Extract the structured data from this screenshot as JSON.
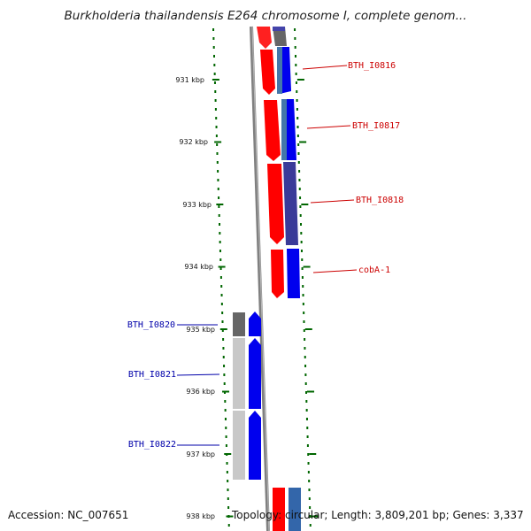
{
  "title": "Burkholderia thailandensis E264 chromosome I, complete genom...",
  "footer": {
    "accession": "Accession: NC_007651",
    "stats": "Topology: circular; Length: 3,809,201 bp; Genes: 3,337"
  },
  "colors": {
    "forward_red": "#ff0000",
    "forward_blue": "#0000ff",
    "gene_label_red": "#cc0000",
    "gene_label_blue": "#0000aa",
    "tick_green": "#006600",
    "backbone_gray": "#808080"
  },
  "scale": {
    "unit": "kbp",
    "ticks": [
      {
        "label": "931 kbp"
      },
      {
        "label": "932 kbp"
      },
      {
        "label": "933 kbp"
      },
      {
        "label": "934 kbp"
      },
      {
        "label": "935 kbp"
      },
      {
        "label": "936 kbp"
      },
      {
        "label": "937 kbp"
      },
      {
        "label": "938 kbp"
      }
    ]
  },
  "genes_right": [
    {
      "name": "BTH_I0816"
    },
    {
      "name": "BTH_I0817"
    },
    {
      "name": "BTH_I0818"
    },
    {
      "name": "cobA-1"
    }
  ],
  "genes_left": [
    {
      "name": "BTH_I0820"
    },
    {
      "name": "BTH_I0821"
    },
    {
      "name": "BTH_I0822"
    }
  ]
}
